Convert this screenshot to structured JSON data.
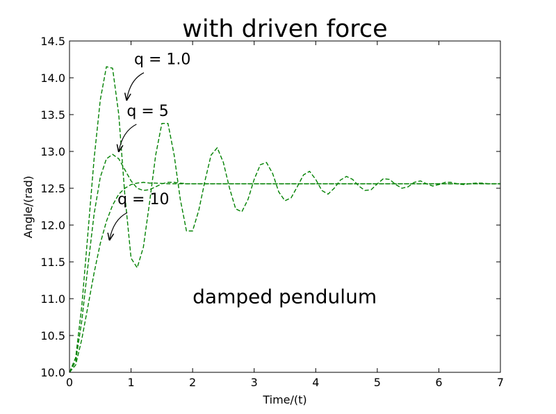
{
  "chart_data": {
    "type": "line",
    "title": "with driven force",
    "xlabel": "Time/(t)",
    "ylabel": "Angle/(rad)",
    "xlim": [
      0,
      7
    ],
    "ylim": [
      10.0,
      14.5
    ],
    "grid": false,
    "legend": "none",
    "xticks": [
      "0",
      "1",
      "2",
      "3",
      "4",
      "5",
      "6",
      "7"
    ],
    "yticks": [
      "10.0",
      "10.5",
      "11.0",
      "11.5",
      "12.0",
      "12.5",
      "13.0",
      "13.5",
      "14.0",
      "14.5"
    ],
    "line_style": "dashed",
    "line_color": "#008000",
    "series": [
      {
        "x": [
          0,
          0.1,
          0.2,
          0.3,
          0.4,
          0.5,
          0.6,
          0.7,
          0.8,
          0.9,
          1.0,
          1.1,
          1.2,
          1.3,
          1.4,
          1.5,
          1.6,
          1.7,
          1.8,
          1.9,
          2.0,
          2.1,
          2.2,
          2.3,
          2.4,
          2.5,
          2.6,
          2.7,
          2.8,
          2.9,
          3.0,
          3.1,
          3.2,
          3.3,
          3.4,
          3.5,
          3.6,
          3.7,
          3.8,
          3.9,
          4.0,
          4.1,
          4.2,
          4.3,
          4.4,
          4.5,
          4.6,
          4.7,
          4.8,
          4.9,
          5.0,
          5.1,
          5.2,
          5.3,
          5.4,
          5.5,
          5.6,
          5.7,
          5.8,
          5.9,
          6.0,
          6.1,
          6.2,
          6.3,
          6.4,
          6.5,
          6.6,
          6.7,
          6.8,
          6.9,
          7.0
        ],
        "y": [
          10.0,
          10.2,
          10.9,
          11.9,
          12.9,
          13.7,
          14.15,
          14.13,
          13.5,
          12.4,
          11.55,
          11.42,
          11.7,
          12.3,
          12.95,
          13.38,
          13.38,
          12.95,
          12.35,
          11.92,
          11.92,
          12.2,
          12.6,
          12.95,
          13.05,
          12.85,
          12.5,
          12.22,
          12.18,
          12.35,
          12.62,
          12.82,
          12.85,
          12.7,
          12.45,
          12.33,
          12.37,
          12.52,
          12.68,
          12.73,
          12.62,
          12.47,
          12.42,
          12.5,
          12.61,
          12.66,
          12.62,
          12.53,
          12.47,
          12.48,
          12.56,
          12.63,
          12.62,
          12.55,
          12.5,
          12.52,
          12.58,
          12.6,
          12.56,
          12.53,
          12.55,
          12.58,
          12.58,
          12.56,
          12.55,
          12.56,
          12.57,
          12.57,
          12.56,
          12.56,
          12.56
        ]
      },
      {
        "x": [
          0,
          0.1,
          0.2,
          0.3,
          0.4,
          0.5,
          0.6,
          0.7,
          0.8,
          0.9,
          1.0,
          1.1,
          1.2,
          1.3,
          1.4,
          1.5,
          1.6,
          1.7,
          1.8,
          1.9,
          2.0,
          2.2,
          2.4,
          2.6,
          2.8,
          3.0,
          3.5,
          4.0,
          4.5,
          5.0,
          5.5,
          6.0,
          6.5,
          7.0
        ],
        "y": [
          10.0,
          10.15,
          10.7,
          11.45,
          12.15,
          12.65,
          12.9,
          12.96,
          12.9,
          12.75,
          12.6,
          12.5,
          12.47,
          12.48,
          12.52,
          12.56,
          12.58,
          12.58,
          12.57,
          12.56,
          12.56,
          12.56,
          12.56,
          12.56,
          12.56,
          12.56,
          12.56,
          12.56,
          12.56,
          12.56,
          12.56,
          12.56,
          12.56,
          12.56
        ]
      },
      {
        "x": [
          0,
          0.1,
          0.2,
          0.3,
          0.4,
          0.5,
          0.6,
          0.7,
          0.8,
          0.9,
          1.0,
          1.1,
          1.2,
          1.3,
          1.4,
          1.6,
          1.8,
          2.0,
          2.5,
          3.0,
          4.0,
          5.0,
          6.0,
          7.0
        ],
        "y": [
          10.0,
          10.1,
          10.45,
          10.9,
          11.35,
          11.75,
          12.05,
          12.27,
          12.42,
          12.5,
          12.55,
          12.57,
          12.58,
          12.57,
          12.57,
          12.56,
          12.56,
          12.56,
          12.56,
          12.56,
          12.56,
          12.56,
          12.56,
          12.56
        ]
      }
    ],
    "annotations": [
      {
        "text": "q = 1.0",
        "xy": [
          0.93,
          13.7
        ],
        "xytext": [
          1.05,
          14.05
        ]
      },
      {
        "text": "q = 5",
        "xy": [
          0.8,
          13.0
        ],
        "xytext": [
          0.93,
          13.35
        ]
      },
      {
        "text": "q = 10",
        "xy": [
          0.65,
          11.8
        ],
        "xytext": [
          0.78,
          12.15
        ]
      }
    ],
    "text_labels": [
      {
        "text": "damped pendulum",
        "x": 2.0,
        "y": 10.95
      }
    ]
  }
}
